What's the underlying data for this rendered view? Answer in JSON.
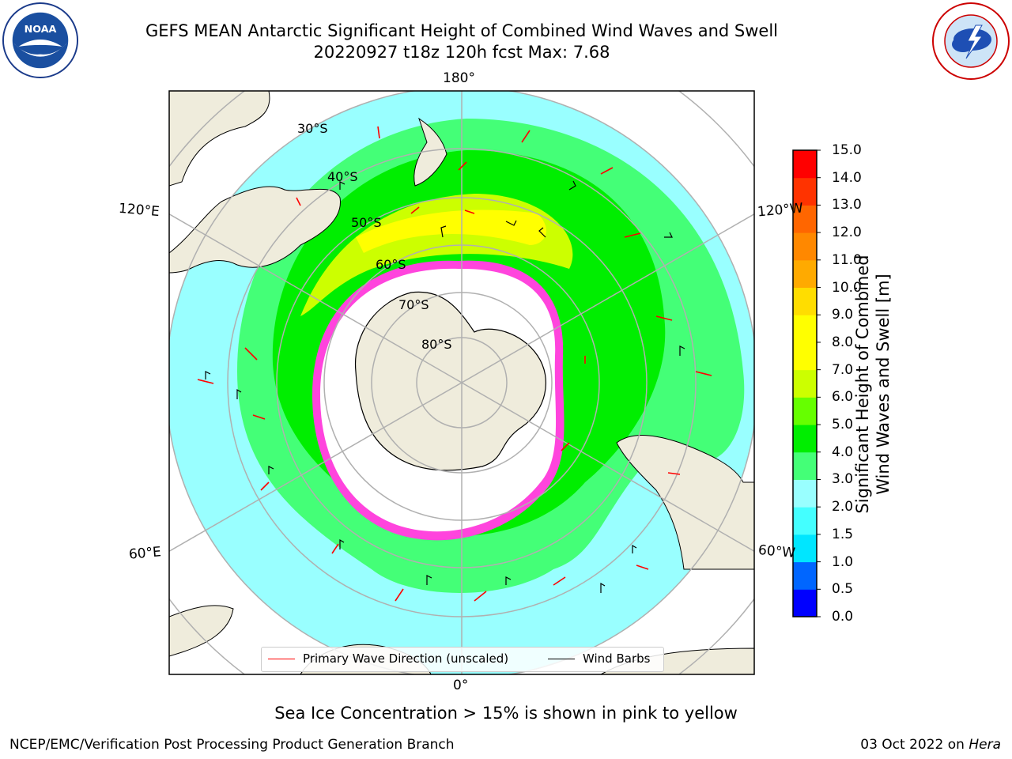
{
  "header": {
    "title_line1": "GEFS MEAN Antarctic Significant Height of Combined Wind Waves and Swell",
    "title_line2": "20220927 t18z 120h fcst   Max: 7.68"
  },
  "map": {
    "projection": "south-polar-stereographic",
    "longitude_labels": {
      "top": "180°",
      "left_upper": "120°E",
      "right_upper": "120°W",
      "left_lower": "60°E",
      "right_lower": "60°W",
      "bottom": "0°"
    },
    "latitude_labels": [
      "30°S",
      "40°S",
      "50°S",
      "60°S",
      "70°S",
      "80°S"
    ],
    "legend": {
      "wave_label": "Primary Wave Direction (unscaled)",
      "wind_label": "Wind Barbs",
      "wave_color": "#ff0000",
      "wind_color": "#000000"
    },
    "colors": {
      "land": "#efecdc",
      "ice_edge": "#ff44dd",
      "grid": "#b0b0b0"
    }
  },
  "colorbar": {
    "label_line1": "Significant Height of Combined",
    "label_line2": "Wind Waves and Swell [m]",
    "ticks": [
      "0.0",
      "0.5",
      "1.0",
      "1.5",
      "2.0",
      "3.0",
      "4.0",
      "5.0",
      "6.0",
      "7.0",
      "8.0",
      "9.0",
      "10.0",
      "11.0",
      "12.0",
      "13.0",
      "14.0",
      "15.0"
    ],
    "colors": [
      "#0000ff",
      "#0066ff",
      "#00e6ff",
      "#44ffff",
      "#99ffff",
      "#44ff77",
      "#00ee00",
      "#66ff00",
      "#ccff00",
      "#ffff00",
      "#ffff00",
      "#ffdd00",
      "#ffaa00",
      "#ff8800",
      "#ff6600",
      "#ff3300",
      "#ff0000"
    ]
  },
  "caption": "Sea Ice Concentration > 15% is shown in pink to yellow",
  "footer": {
    "left": "NCEP/EMC/Verification Post Processing Product Generation Branch",
    "right_date": "03 Oct 2022 on ",
    "right_host": "Hera"
  }
}
